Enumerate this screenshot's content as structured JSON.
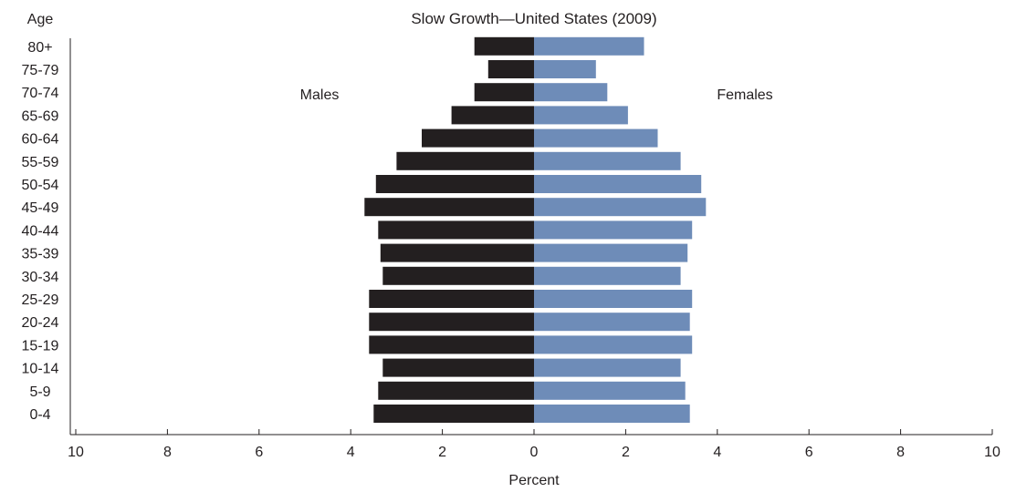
{
  "chart_data": {
    "type": "bar",
    "orientation": "horizontal",
    "subtype": "population-pyramid",
    "title": "Slow Growth—United States (2009)",
    "ylabel": "Age",
    "xlabel": "Percent",
    "categories": [
      "0-4",
      "5-9",
      "10-14",
      "15-19",
      "20-24",
      "25-29",
      "30-34",
      "35-39",
      "40-44",
      "45-49",
      "50-54",
      "55-59",
      "60-64",
      "65-69",
      "70-74",
      "75-79",
      "80+"
    ],
    "series": [
      {
        "name": "Males",
        "side": "left",
        "color": "#231f20",
        "values": [
          3.5,
          3.4,
          3.3,
          3.6,
          3.6,
          3.6,
          3.3,
          3.35,
          3.4,
          3.7,
          3.45,
          3.0,
          2.45,
          1.8,
          1.3,
          1.0,
          1.3
        ]
      },
      {
        "name": "Females",
        "side": "right",
        "color": "#6e8cb8",
        "values": [
          3.4,
          3.3,
          3.2,
          3.45,
          3.4,
          3.45,
          3.2,
          3.35,
          3.45,
          3.75,
          3.65,
          3.2,
          2.7,
          2.05,
          1.6,
          1.35,
          2.4
        ]
      }
    ],
    "xlim": [
      -10,
      10
    ],
    "xticks": [
      -10,
      -8,
      -6,
      -4,
      -2,
      0,
      2,
      4,
      6,
      8,
      10
    ],
    "xtick_labels": [
      "10",
      "8",
      "6",
      "4",
      "2",
      "0",
      "2",
      "4",
      "6",
      "8",
      "10"
    ],
    "annotations": [
      "Males",
      "Females"
    ],
    "grid": false,
    "legend": "none"
  }
}
